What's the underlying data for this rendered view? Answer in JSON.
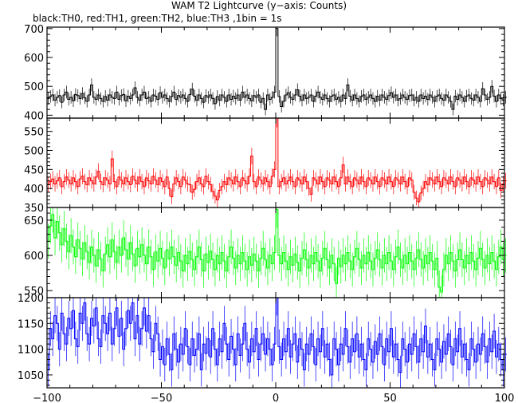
{
  "chart_data": {
    "type": "line",
    "title": "WAM T2 Lightcurve (y−axis: Counts)",
    "subtitle": "black:TH0, red:TH1, green:TH2, blue:TH3 ,1bin = 1s",
    "xlabel": "",
    "xlim": [
      -100,
      100
    ],
    "xticks": [
      -100,
      -50,
      0,
      50,
      100
    ],
    "x_step": 1,
    "series": [
      {
        "name": "TH0",
        "color": "#000000",
        "ylim": [
          390,
          705
        ],
        "yticks": [
          400,
          500,
          600,
          700
        ],
        "values": [
          458,
          465,
          470,
          452,
          462,
          468,
          445,
          470,
          480,
          455,
          462,
          450,
          472,
          468,
          458,
          475,
          460,
          448,
          470,
          505,
          462,
          455,
          470,
          458,
          448,
          465,
          452,
          470,
          462,
          458,
          480,
          455,
          468,
          472,
          450,
          466,
          458,
          470,
          495,
          462,
          452,
          470,
          480,
          458,
          462,
          448,
          470,
          466,
          455,
          478,
          462,
          470,
          458,
          448,
          465,
          480,
          455,
          468,
          462,
          470,
          458,
          448,
          472,
          490,
          466,
          452,
          470,
          458,
          445,
          468,
          462,
          470,
          458,
          440,
          465,
          452,
          470,
          462,
          448,
          470,
          455,
          466,
          458,
          470,
          452,
          480,
          462,
          470,
          458,
          450,
          468,
          462,
          470,
          445,
          458,
          420,
          470,
          455,
          462,
          480,
          700,
          465,
          430,
          448,
          470,
          478,
          462,
          455,
          470,
          488,
          466,
          452,
          470,
          458,
          462,
          470,
          448,
          466,
          480,
          462,
          455,
          470,
          458,
          448,
          466,
          470,
          455,
          462,
          448,
          470,
          458,
          505,
          466,
          452,
          470,
          458,
          448,
          465,
          470,
          455,
          462,
          470,
          458,
          448,
          466,
          452,
          470,
          462,
          455,
          468,
          478,
          462,
          470,
          452,
          458,
          470,
          462,
          455,
          468,
          470,
          452,
          462,
          448,
          470,
          458,
          466,
          455,
          470,
          462,
          448,
          466,
          470,
          458,
          452,
          470,
          462,
          448,
          420,
          466,
          455,
          470,
          462,
          448,
          466,
          470,
          458,
          452,
          470,
          462,
          448,
          492,
          470,
          455,
          462,
          500,
          466,
          448,
          470,
          458,
          452,
          462
        ]
      },
      {
        "name": "TH1",
        "color": "#ff0000",
        "ylim": [
          350,
          585
        ],
        "yticks": [
          350,
          400,
          450,
          500,
          550
        ],
        "values": [
          410,
          418,
          425,
          412,
          420,
          428,
          405,
          418,
          430,
          422,
          412,
          428,
          418,
          405,
          425,
          432,
          418,
          410,
          428,
          420,
          412,
          430,
          445,
          418,
          410,
          428,
          422,
          412,
          478,
          418,
          405,
          430,
          422,
          412,
          428,
          418,
          410,
          432,
          422,
          412,
          430,
          418,
          405,
          428,
          420,
          412,
          432,
          422,
          410,
          428,
          418,
          405,
          430,
          400,
          378,
          412,
          428,
          418,
          405,
          430,
          422,
          412,
          410,
          390,
          398,
          418,
          428,
          412,
          405,
          432,
          418,
          410,
          392,
          380,
          370,
          395,
          405,
          418,
          410,
          428,
          422,
          412,
          430,
          418,
          405,
          428,
          420,
          412,
          432,
          485,
          418,
          405,
          430,
          422,
          412,
          428,
          418,
          405,
          432,
          450,
          585,
          405,
          418,
          428,
          412,
          420,
          430,
          418,
          405,
          428,
          422,
          412,
          430,
          418,
          400,
          385,
          428,
          422,
          412,
          430,
          418,
          405,
          428,
          422,
          412,
          430,
          418,
          405,
          428,
          462,
          412,
          430,
          418,
          405,
          428,
          422,
          412,
          430,
          418,
          405,
          428,
          422,
          412,
          430,
          418,
          405,
          428,
          422,
          412,
          430,
          418,
          405,
          428,
          422,
          412,
          430,
          418,
          405,
          428,
          422,
          390,
          375,
          365,
          388,
          400,
          418,
          410,
          428,
          422,
          412,
          430,
          418,
          405,
          428,
          422,
          412,
          430,
          418,
          405,
          428,
          422,
          412,
          430,
          418,
          405,
          428,
          422,
          412,
          430,
          418,
          405,
          428,
          422,
          412,
          430,
          418,
          405,
          428,
          395,
          412,
          420
        ]
      },
      {
        "name": "TH2",
        "color": "#00ff00",
        "ylim": [
          540,
          668
        ],
        "yticks": [
          550,
          600,
          650
        ],
        "values": [
          620,
          642,
          658,
          625,
          648,
          632,
          615,
          638,
          620,
          605,
          628,
          612,
          598,
          622,
          610,
          595,
          618,
          605,
          590,
          612,
          600,
          585,
          608,
          595,
          578,
          602,
          615,
          598,
          622,
          605,
          590,
          612,
          600,
          625,
          608,
          595,
          618,
          602,
          585,
          610,
          598,
          615,
          600,
          588,
          612,
          598,
          580,
          605,
          592,
          610,
          596,
          582,
          608,
          595,
          612,
          598,
          586,
          604,
          592,
          578,
          600,
          588,
          606,
          594,
          580,
          598,
          612,
          594,
          578,
          602,
          590,
          606,
          594,
          580,
          600,
          588,
          604,
          592,
          578,
          598,
          612,
          596,
          582,
          600,
          588,
          604,
          592,
          580,
          598,
          586,
          602,
          592,
          578,
          596,
          610,
          594,
          582,
          600,
          588,
          604,
          665,
          600,
          588,
          604,
          592,
          580,
          598,
          586,
          602,
          590,
          578,
          596,
          608,
          594,
          582,
          600,
          588,
          604,
          592,
          578,
          596,
          610,
          594,
          582,
          600,
          588,
          560,
          596,
          584,
          600,
          588,
          604,
          592,
          580,
          598,
          610,
          594,
          582,
          600,
          588,
          604,
          592,
          580,
          596,
          608,
          594,
          582,
          600,
          588,
          604,
          592,
          580,
          598,
          612,
          594,
          582,
          600,
          588,
          604,
          592,
          580,
          596,
          608,
          594,
          582,
          600,
          588,
          604,
          592,
          580,
          596,
          555,
          548,
          580,
          600,
          588,
          604,
          592,
          578,
          594,
          608,
          594,
          582,
          600,
          588,
          604,
          592,
          580,
          596,
          610,
          594,
          582,
          600,
          588,
          604,
          592,
          580,
          598,
          612,
          594,
          600
        ]
      },
      {
        "name": "TH3",
        "color": "#0000ff",
        "ylim": [
          1025,
          1200
        ],
        "yticks": [
          1050,
          1100,
          1150,
          1200
        ],
        "values": [
          1060,
          1140,
          1120,
          1165,
          1150,
          1100,
          1170,
          1130,
          1110,
          1160,
          1140,
          1175,
          1120,
          1105,
          1170,
          1150,
          1190,
          1130,
          1110,
          1160,
          1145,
          1180,
          1120,
          1105,
          1165,
          1150,
          1130,
          1170,
          1110,
          1140,
          1180,
          1125,
          1160,
          1100,
          1140,
          1175,
          1150,
          1190,
          1120,
          1165,
          1110,
          1140,
          1180,
          1135,
          1165,
          1120,
          1095,
          1150,
          1130,
          1080,
          1105,
          1070,
          1120,
          1090,
          1060,
          1130,
          1100,
          1075,
          1110,
          1090,
          1140,
          1105,
          1070,
          1120,
          1088,
          1100,
          1130,
          1060,
          1110,
          1092,
          1120,
          1085,
          1140,
          1100,
          1070,
          1120,
          1095,
          1150,
          1110,
          1080,
          1125,
          1100,
          1070,
          1130,
          1088,
          1110,
          1150,
          1100,
          1075,
          1120,
          1095,
          1140,
          1080,
          1110,
          1130,
          1090,
          1120,
          1100,
          1070,
          1110,
          1200,
          1105,
          1080,
          1120,
          1095,
          1140,
          1085,
          1110,
          1130,
          1075,
          1120,
          1100,
          1060,
          1110,
          1090,
          1130,
          1105,
          1070,
          1120,
          1095,
          1140,
          1085,
          1110,
          1080,
          1050,
          1120,
          1100,
          1070,
          1110,
          1090,
          1140,
          1105,
          1075,
          1120,
          1095,
          1130,
          1085,
          1110,
          1080,
          1060,
          1120,
          1100,
          1075,
          1115,
          1090,
          1130,
          1105,
          1070,
          1120,
          1095,
          1140,
          1085,
          1110,
          1080,
          1055,
          1120,
          1100,
          1075,
          1110,
          1090,
          1130,
          1105,
          1075,
          1120,
          1095,
          1145,
          1085,
          1110,
          1080,
          1060,
          1120,
          1100,
          1075,
          1115,
          1090,
          1130,
          1105,
          1070,
          1120,
          1095,
          1140,
          1085,
          1110,
          1080,
          1060,
          1120,
          1100,
          1075,
          1110,
          1090,
          1130,
          1105,
          1075,
          1120,
          1095,
          1135,
          1085,
          1110,
          1080,
          1060,
          1090
        ]
      }
    ]
  }
}
